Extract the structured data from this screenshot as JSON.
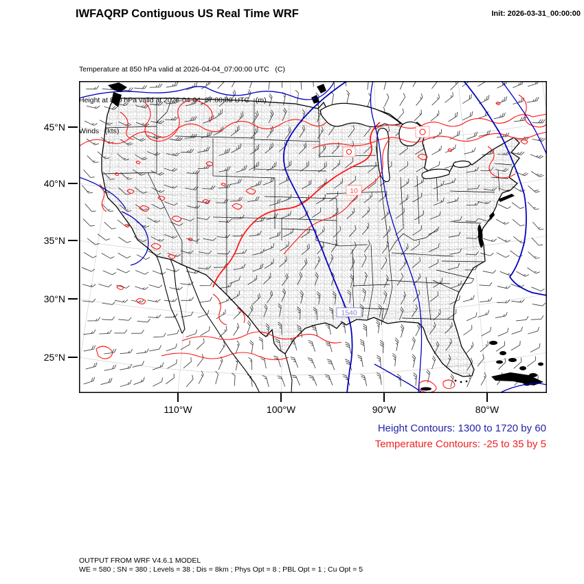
{
  "header": {
    "title": "IWFAQRP Contiguous US Real Time WRF",
    "init_label": "Init: 2026-03-31_00:00:00"
  },
  "subtitle": {
    "line1": "Temperature at 850 hPa valid at 2026-04-04_07:00:00 UTC   (C)",
    "line2": "Height at 850 hPa valid at 2026-04-04_07:00:00 UTC   (m)",
    "line3": "Winds   (kts)"
  },
  "axes": {
    "lat_ticks": [
      "45°N",
      "40°N",
      "35°N",
      "30°N",
      "25°N"
    ],
    "lon_ticks": [
      "110°W",
      "100°W",
      "90°W",
      "80°W"
    ]
  },
  "map_labels": {
    "height_contour_value": "1540",
    "temp_contour_value": "10"
  },
  "legend": {
    "height_text": "Height Contours: 1300 to 1720 by 60",
    "temp_text": "Temperature Contours: -25 to 35 by 5"
  },
  "footer": {
    "line1": "OUTPUT FROM WRF V4.6.1 MODEL",
    "line2": "WE = 580 ; SN = 380 ; Levels = 38 ; Dis = 8km ; Phys Opt = 8 ; PBL Opt = 1 ; Cu Opt = 5"
  },
  "colors": {
    "height_contour": "#0000C0",
    "temperature_contour": "#FF1010",
    "legend_height": "#2222AA",
    "legend_temp": "#EE2222",
    "height_label": "#8888CC",
    "temp_label": "#FF5555",
    "county_line": "#8C8C8C",
    "graticule": "#BFBFBF",
    "wind_barb": "#3A3A3A",
    "coast": "#000000"
  }
}
